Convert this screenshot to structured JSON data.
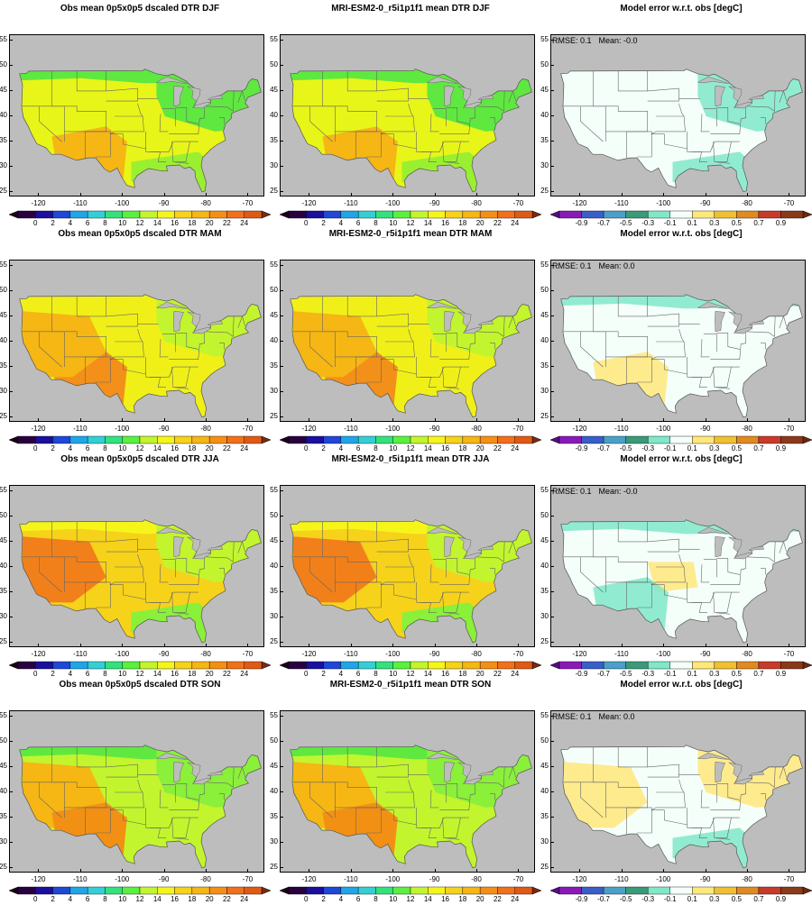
{
  "figure": {
    "title_obs": "Obs mean 0p5x0p5 dscaled DTR",
    "title_model": "MRI-ESM2-0_r5i1p1f1 mean DTR",
    "title_error": "Model error w.r.t. obs [degC]",
    "rmse_label": "RMSE:",
    "mean_label": "Mean:"
  },
  "map": {
    "lon_range": [
      -127,
      -66
    ],
    "lat_range": [
      24,
      56
    ],
    "lon_ticks": [
      "-120",
      "-110",
      "-100",
      "-90",
      "-80",
      "-70"
    ],
    "lat_ticks": [
      "55",
      "50",
      "45",
      "40",
      "35",
      "30",
      "25"
    ],
    "land_color": "#bdbdbd"
  },
  "colorbars": {
    "dtr": {
      "labels": [
        "0",
        "2",
        "4",
        "6",
        "8",
        "10",
        "12",
        "14",
        "16",
        "18",
        "20",
        "22",
        "24"
      ],
      "colors": [
        "#2a0040",
        "#1a0f9e",
        "#1f47d8",
        "#1ea6e8",
        "#33cfd6",
        "#33e27d",
        "#5af03e",
        "#c2f52d",
        "#f6f51a",
        "#f6d21a",
        "#f6b614",
        "#f58f14",
        "#f2701a",
        "#e05a14"
      ],
      "under_color": "#1a001a",
      "over_color": "#7a2a12"
    },
    "error": {
      "labels": [
        "-0.9",
        "-0.7",
        "-0.5",
        "-0.3",
        "-0.1",
        "0.1",
        "0.3",
        "0.5",
        "0.7",
        "0.9"
      ],
      "colors": [
        "#8a1ab8",
        "#3a5ec8",
        "#4aa0c8",
        "#3a9a7a",
        "#7fe8c8",
        "#f4fffa",
        "#ffe87a",
        "#f0c030",
        "#e08a20",
        "#c83a2a",
        "#8a3a1a"
      ],
      "under_color": "#5a0a8a",
      "over_color": "#6a2a10"
    }
  },
  "rows": [
    {
      "season": "DJF",
      "rmse": "0.1",
      "mean": "-0.0",
      "obs_base": "#e8f518",
      "obs_regions": [
        {
          "region": "north",
          "color": "#5fe840"
        },
        {
          "region": "northeast",
          "color": "#5fe840"
        },
        {
          "region": "southwest",
          "color": "#f6b614"
        },
        {
          "region": "gulf",
          "color": "#9af030"
        }
      ],
      "error_patches": [
        {
          "region": "gulf",
          "sign": "neg"
        },
        {
          "region": "northeast",
          "sign": "neg"
        }
      ]
    },
    {
      "season": "MAM",
      "rmse": "0.1",
      "mean": "0.0",
      "obs_base": "#f0f018",
      "obs_regions": [
        {
          "region": "southwest",
          "color": "#f2901a"
        },
        {
          "region": "west",
          "color": "#f6b614"
        },
        {
          "region": "northeast",
          "color": "#c2f52d"
        }
      ],
      "error_patches": [
        {
          "region": "north",
          "sign": "neg"
        },
        {
          "region": "southwest",
          "sign": "pos"
        }
      ]
    },
    {
      "season": "JJA",
      "rmse": "0.1",
      "mean": "-0.0",
      "obs_base": "#f6d21a",
      "obs_regions": [
        {
          "region": "west",
          "color": "#f2801a"
        },
        {
          "region": "north",
          "color": "#f6f51a"
        },
        {
          "region": "northeast",
          "color": "#c2f52d"
        },
        {
          "region": "gulf",
          "color": "#8af03a"
        }
      ],
      "error_patches": [
        {
          "region": "north",
          "sign": "neg"
        },
        {
          "region": "plains",
          "sign": "pos"
        },
        {
          "region": "southwest",
          "sign": "neg"
        }
      ]
    },
    {
      "season": "SON",
      "rmse": "0.1",
      "mean": "0.0",
      "obs_base": "#c2f52d",
      "obs_regions": [
        {
          "region": "west",
          "color": "#f6b614"
        },
        {
          "region": "southwest",
          "color": "#f29014"
        },
        {
          "region": "north",
          "color": "#5fe840"
        },
        {
          "region": "northeast",
          "color": "#8af03a"
        }
      ],
      "error_patches": [
        {
          "region": "west",
          "sign": "pos"
        },
        {
          "region": "northeast",
          "sign": "pos"
        },
        {
          "region": "gulf",
          "sign": "neg"
        }
      ]
    }
  ]
}
